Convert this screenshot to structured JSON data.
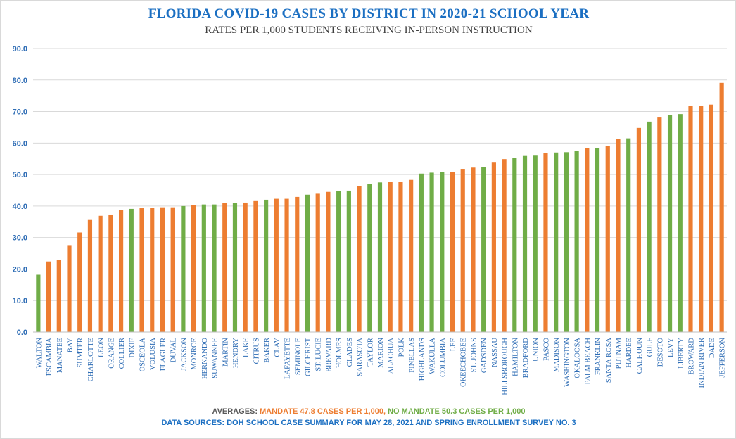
{
  "chart_data": {
    "type": "bar",
    "title": "FLORIDA COVID-19 CASES BY DISTRICT IN 2020-21 SCHOOL YEAR",
    "subtitle": "RATES PER 1,000 STUDENTS RECEIVING IN-PERSON INSTRUCTION",
    "xlabel": "",
    "ylabel": "",
    "ylim": [
      0,
      90
    ],
    "yticks": [
      "0.0",
      "10.0",
      "20.0",
      "30.0",
      "40.0",
      "50.0",
      "60.0",
      "70.0",
      "80.0",
      "90.0"
    ],
    "grid": true,
    "colors": {
      "mandate": "#ed7d31",
      "no_mandate": "#70ad47",
      "axis_text": "#2f6db5",
      "title": "#1b6fc2"
    },
    "categories": [
      "WALTON",
      "ESCAMBIA",
      "MANATEE",
      "BAY",
      "SUMTER",
      "CHARLOTTE",
      "LEON",
      "ORANGE",
      "COLLIER",
      "DIXIE",
      "OSCEOLA",
      "VOLUSIA",
      "FLAGLER",
      "DUVAL",
      "JACKSON",
      "MONROE",
      "HERNANDO",
      "SUWANNEE",
      "MARTIN",
      "HENDRY",
      "LAKE",
      "CITRUS",
      "BAKER",
      "CLAY",
      "LAFAYETTE",
      "SEMINOLE",
      "GILCHRIST",
      "ST. LUCIE",
      "BREVARD",
      "HOLMES",
      "GLADES",
      "SARASOTA",
      "TAYLOR",
      "MARION",
      "ALACHUA",
      "POLK",
      "PINELLAS",
      "HIGHLANDS",
      "WAKULLA",
      "COLUMBIA",
      "LEE",
      "OKEECHOBEE",
      "ST. JOHNS",
      "GADSDEN",
      "NASSAU",
      "HILLSBOROUGH",
      "HAMILTON",
      "BRADFORD",
      "UNION",
      "PASCO",
      "MADISON",
      "WASHINGTON",
      "OKALOOSA",
      "PALM BEACH",
      "FRANKLIN",
      "SANTA ROSA",
      "PUTNAM",
      "HARDEE",
      "CALHOUN",
      "GULF",
      "DESOTO",
      "LEVY",
      "LIBERTY",
      "BROWARD",
      "INDIAN RIVER",
      "DADE",
      "JEFFERSON"
    ],
    "values": [
      18.2,
      22.4,
      23.0,
      27.6,
      31.6,
      35.8,
      36.9,
      37.3,
      38.7,
      39.1,
      39.3,
      39.5,
      39.6,
      39.6,
      40.0,
      40.3,
      40.5,
      40.5,
      40.9,
      41.0,
      41.1,
      41.8,
      42.0,
      42.3,
      42.3,
      42.9,
      43.6,
      43.9,
      44.5,
      44.7,
      44.9,
      46.3,
      47.1,
      47.5,
      47.6,
      47.6,
      48.3,
      50.3,
      50.6,
      50.9,
      50.9,
      51.8,
      52.2,
      52.4,
      54.0,
      54.9,
      55.3,
      55.9,
      56.0,
      56.8,
      57.0,
      57.1,
      57.5,
      58.3,
      58.5,
      59.1,
      61.4,
      61.5,
      64.8,
      66.8,
      68.1,
      68.8,
      69.2,
      71.7,
      71.7,
      72.2,
      79.1
    ],
    "mandate": [
      false,
      true,
      true,
      true,
      true,
      true,
      true,
      true,
      true,
      false,
      true,
      true,
      true,
      true,
      false,
      true,
      false,
      false,
      true,
      false,
      true,
      true,
      false,
      true,
      true,
      true,
      false,
      true,
      true,
      false,
      false,
      true,
      false,
      false,
      true,
      true,
      true,
      false,
      false,
      false,
      true,
      true,
      true,
      false,
      true,
      true,
      false,
      false,
      false,
      true,
      false,
      false,
      false,
      true,
      false,
      true,
      true,
      false,
      true,
      false,
      true,
      false,
      false,
      true,
      true,
      true,
      true
    ]
  },
  "footer": {
    "averages_label": "AVERAGES:",
    "mandate_avg": "MANDATE 47.8 CASES PER 1,000,",
    "no_mandate_avg": "NO MANDATE 50.3 CASES PER 1,000",
    "sources": "DATA SOURCES: DOH SCHOOL CASE SUMMARY FOR MAY 28, 2021 AND SPRING ENROLLMENT SURVEY NO. 3",
    "colors": {
      "label": "#595959",
      "mandate": "#ed7d31",
      "no_mandate": "#70ad47"
    }
  }
}
